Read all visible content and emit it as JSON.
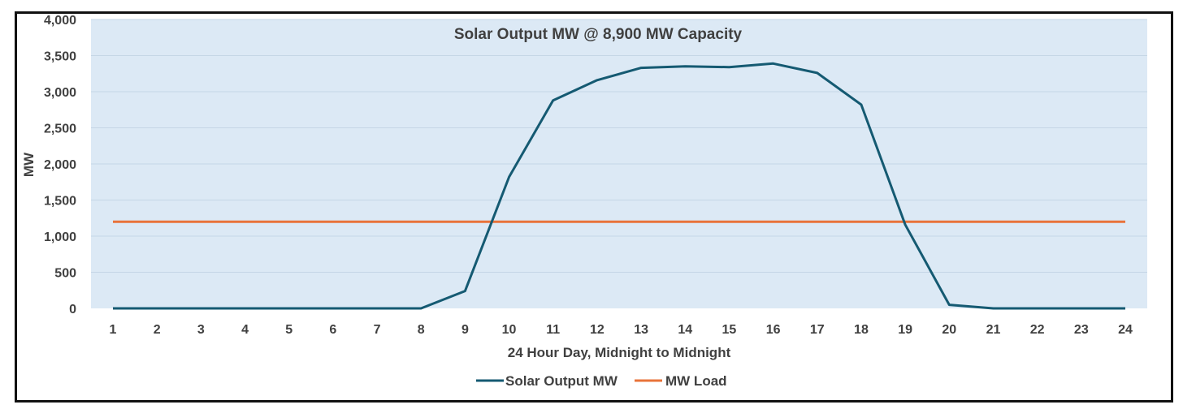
{
  "chart_data": {
    "type": "line",
    "title": "Solar Output MW @ 8,900 MW Capacity",
    "xlabel": "24 Hour  Day, Midnight to Midnight",
    "ylabel": "MW",
    "categories": [
      1,
      2,
      3,
      4,
      5,
      6,
      7,
      8,
      9,
      10,
      11,
      12,
      13,
      14,
      15,
      16,
      17,
      18,
      19,
      20,
      21,
      22,
      23,
      24
    ],
    "y_ticks": [
      "0",
      "500",
      "1,000",
      "1,500",
      "2,000",
      "2,500",
      "3,000",
      "3,500",
      "4,000"
    ],
    "ylim": [
      0,
      4000
    ],
    "grid": true,
    "legend_position": "bottom",
    "plot_background": "#dce9f5",
    "series": [
      {
        "name": "Solar Output MW",
        "color": "#155a72",
        "values": [
          0,
          0,
          0,
          0,
          0,
          0,
          0,
          0,
          240,
          1820,
          2880,
          3160,
          3330,
          3350,
          3340,
          3390,
          3260,
          2820,
          1160,
          50,
          0,
          0,
          0,
          0
        ]
      },
      {
        "name": "MW Load",
        "color": "#e8733a",
        "values": [
          1200,
          1200,
          1200,
          1200,
          1200,
          1200,
          1200,
          1200,
          1200,
          1200,
          1200,
          1200,
          1200,
          1200,
          1200,
          1200,
          1200,
          1200,
          1200,
          1200,
          1200,
          1200,
          1200,
          1200
        ]
      }
    ]
  }
}
